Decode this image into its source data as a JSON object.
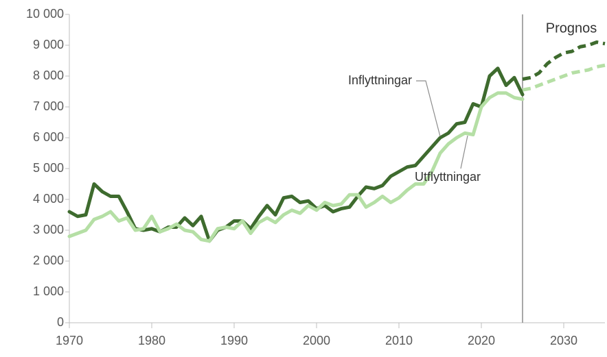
{
  "chart_data": {
    "type": "line",
    "annotation": "Prognos",
    "forecast_start": 2025,
    "xlim": [
      1970,
      2035
    ],
    "xticks": [
      1970,
      1980,
      1990,
      2000,
      2010,
      2020,
      2030
    ],
    "ylim": [
      0,
      10000
    ],
    "yticks": [
      0,
      {
        "value": 1000,
        "label": "1 000"
      },
      {
        "value": 2000,
        "label": "2 000"
      },
      {
        "value": 3000,
        "label": "3 000"
      },
      {
        "value": 4000,
        "label": "4 000"
      },
      {
        "value": 5000,
        "label": "5 000"
      },
      {
        "value": 6000,
        "label": "6 000"
      },
      {
        "value": 7000,
        "label": "7 000"
      },
      {
        "value": 8000,
        "label": "8 000"
      },
      {
        "value": 9000,
        "label": "9 000"
      },
      {
        "value": 10000,
        "label": "10 000"
      }
    ],
    "grid": false,
    "x": [
      1970,
      1971,
      1972,
      1973,
      1974,
      1975,
      1976,
      1977,
      1978,
      1979,
      1980,
      1981,
      1982,
      1983,
      1984,
      1985,
      1986,
      1987,
      1988,
      1989,
      1990,
      1991,
      1992,
      1993,
      1994,
      1995,
      1996,
      1997,
      1998,
      1999,
      2000,
      2001,
      2002,
      2003,
      2004,
      2005,
      2006,
      2007,
      2008,
      2009,
      2010,
      2011,
      2012,
      2013,
      2014,
      2015,
      2016,
      2017,
      2018,
      2019,
      2020,
      2021,
      2022,
      2023,
      2024,
      2025,
      2026,
      2027,
      2028,
      2029,
      2030,
      2031,
      2032,
      2033,
      2034,
      2035
    ],
    "series": [
      {
        "name": "Inflyttningar",
        "color": "#3e6b2e",
        "values": [
          3600,
          3450,
          3500,
          4500,
          4250,
          4100,
          4100,
          3600,
          3050,
          3000,
          3050,
          2950,
          3100,
          3100,
          3400,
          3150,
          3450,
          2650,
          3000,
          3100,
          3300,
          3300,
          3050,
          3450,
          3800,
          3500,
          4050,
          4100,
          3900,
          3950,
          3700,
          3800,
          3600,
          3700,
          3750,
          4100,
          4400,
          4350,
          4450,
          4750,
          4900,
          5050,
          5100,
          5400,
          5700,
          6000,
          6150,
          6450,
          6500,
          7100,
          7000,
          8000,
          8250,
          7700,
          7950,
          7400,
          null,
          null,
          null,
          null,
          null,
          null,
          null,
          null,
          null,
          null
        ],
        "forecast": [
          null,
          null,
          null,
          null,
          null,
          null,
          null,
          null,
          null,
          null,
          null,
          null,
          null,
          null,
          null,
          null,
          null,
          null,
          null,
          null,
          null,
          null,
          null,
          null,
          null,
          null,
          null,
          null,
          null,
          null,
          null,
          null,
          null,
          null,
          null,
          null,
          null,
          null,
          null,
          null,
          null,
          null,
          null,
          null,
          null,
          null,
          null,
          null,
          null,
          null,
          null,
          null,
          null,
          null,
          null,
          7900,
          7950,
          8100,
          8400,
          8600,
          8750,
          8800,
          8950,
          9000,
          9100,
          9050
        ]
      },
      {
        "name": "Utflyttningar",
        "color": "#b5dfa5",
        "values": [
          2800,
          2900,
          3000,
          3350,
          3450,
          3600,
          3300,
          3400,
          3000,
          3050,
          3450,
          2950,
          3050,
          3200,
          3000,
          2950,
          2700,
          2650,
          3050,
          3100,
          3050,
          3300,
          2900,
          3250,
          3400,
          3250,
          3500,
          3650,
          3550,
          3800,
          3650,
          3900,
          3800,
          3850,
          4150,
          4150,
          3750,
          3900,
          4100,
          3900,
          4050,
          4300,
          4500,
          4500,
          4900,
          5500,
          5800,
          6000,
          6150,
          6100,
          7000,
          7300,
          7450,
          7450,
          7300,
          7250,
          null,
          null,
          null,
          null,
          null,
          null,
          null,
          null,
          null,
          null
        ],
        "forecast": [
          null,
          null,
          null,
          null,
          null,
          null,
          null,
          null,
          null,
          null,
          null,
          null,
          null,
          null,
          null,
          null,
          null,
          null,
          null,
          null,
          null,
          null,
          null,
          null,
          null,
          null,
          null,
          null,
          null,
          null,
          null,
          null,
          null,
          null,
          null,
          null,
          null,
          null,
          null,
          null,
          null,
          null,
          null,
          null,
          null,
          null,
          null,
          null,
          null,
          null,
          null,
          null,
          null,
          null,
          null,
          7550,
          7600,
          7700,
          7800,
          7900,
          8000,
          8100,
          8150,
          8200,
          8300,
          8350
        ]
      }
    ]
  }
}
